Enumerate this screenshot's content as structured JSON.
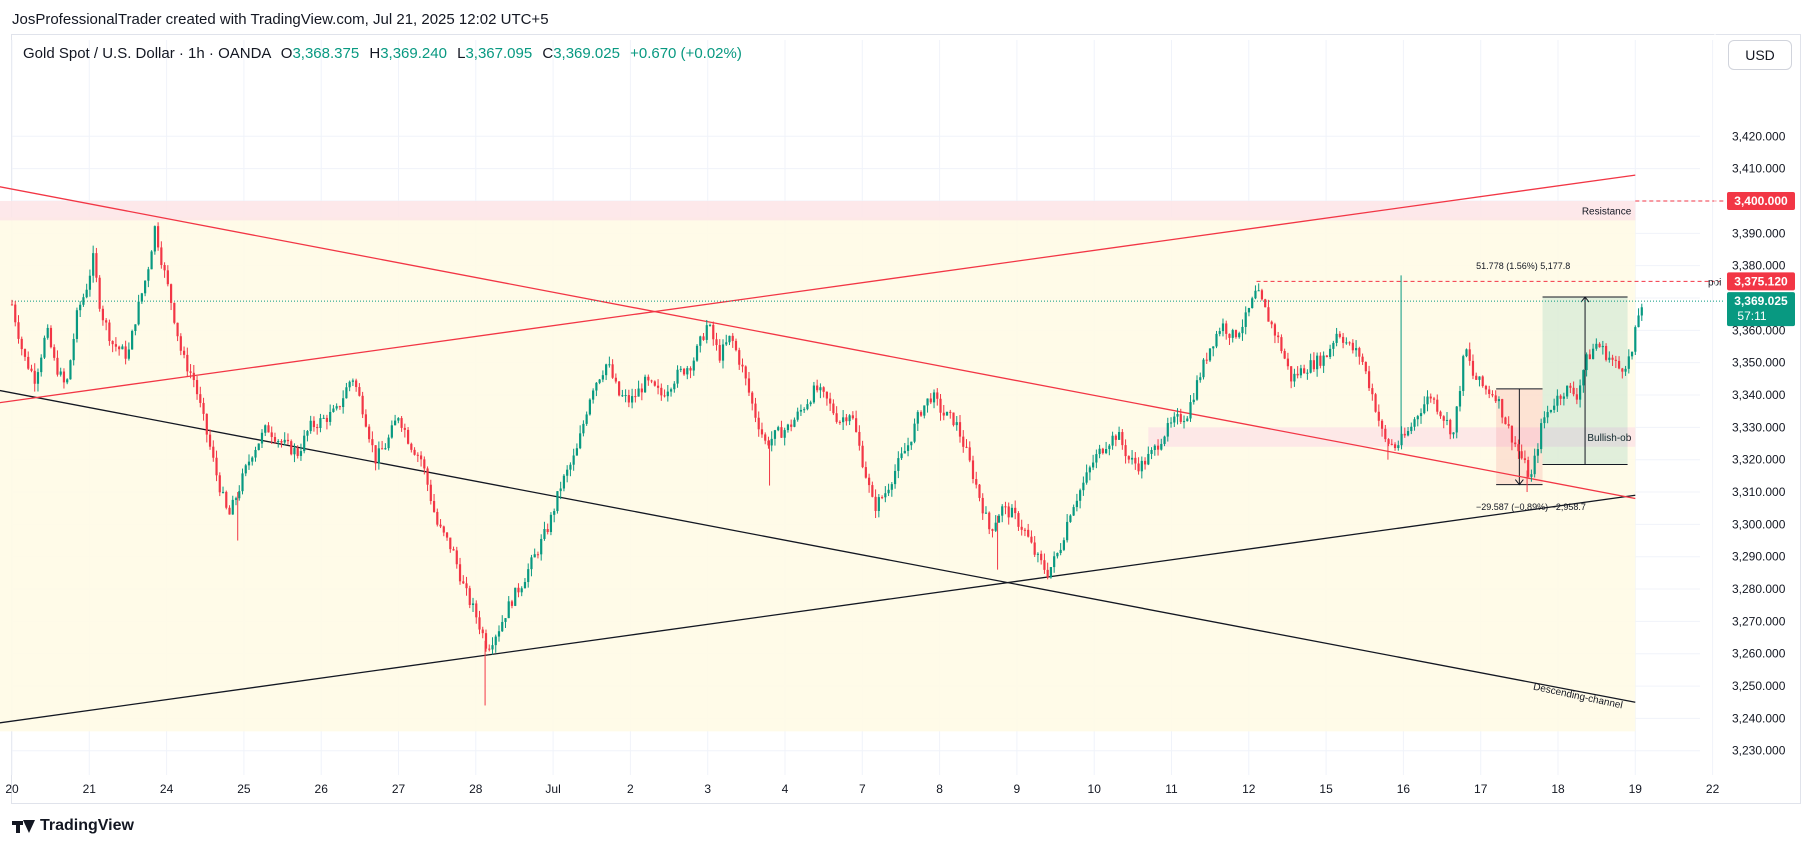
{
  "header": {
    "credit": "JosProfessionalTrader created with TradingView.com, Jul 21, 2025 12:02 UTC+5"
  },
  "legend": {
    "symbol": "Gold Spot / U.S. Dollar · 1h · OANDA",
    "open_label": "O",
    "open": "3,368.375",
    "high_label": "H",
    "high": "3,369.240",
    "low_label": "L",
    "low": "3,367.095",
    "close_label": "C",
    "close": "3,369.025",
    "change": "+0.670 (+0.02%)"
  },
  "currency_button": "USD",
  "footer": {
    "brand": "TradingView"
  },
  "colors": {
    "up": "#089981",
    "down": "#f23645",
    "trend_red": "#f23645",
    "trend_black": "#131722",
    "zone_fill": "#fffbe6",
    "resistance_fill": "#fde4e6"
  },
  "chart_data": {
    "type": "candlestick",
    "y_axis_ticks": [
      "3,230.000",
      "3,240.000",
      "3,250.000",
      "3,260.000",
      "3,270.000",
      "3,280.000",
      "3,290.000",
      "3,300.000",
      "3,310.000",
      "3,320.000",
      "3,330.000",
      "3,340.000",
      "3,350.000",
      "3,360.000",
      "3,370.000",
      "3,380.000",
      "3,390.000",
      "3,400.000",
      "3,410.000",
      "3,420.000"
    ],
    "y_tick_values": [
      3230,
      3240,
      3250,
      3260,
      3270,
      3280,
      3290,
      3300,
      3310,
      3320,
      3330,
      3340,
      3350,
      3360,
      3370,
      3380,
      3390,
      3400,
      3410,
      3420
    ],
    "ylim": [
      3222,
      3440
    ],
    "x_axis_ticks": [
      "20",
      "21",
      "24",
      "25",
      "26",
      "27",
      "28",
      "Jul",
      "2",
      "3",
      "4",
      "7",
      "8",
      "9",
      "10",
      "11",
      "12",
      "15",
      "16",
      "17",
      "18",
      "19",
      "22"
    ],
    "x_tick_index": [
      0,
      1,
      2,
      3,
      4,
      5,
      6,
      7,
      8,
      9,
      10,
      11,
      12,
      13,
      14,
      15,
      16,
      17,
      18,
      19,
      20,
      21,
      22
    ],
    "price_labels": [
      {
        "text": "3,400.000",
        "value": 3400,
        "color": "#f23645"
      },
      {
        "text": "3,375.120",
        "value": 3375.12,
        "color": "#f23645"
      },
      {
        "text": "3,369.025",
        "value": 3369.025,
        "color": "#089981",
        "sub": "57:11"
      }
    ],
    "zones": [
      {
        "label": "Resistance",
        "y1": 3394,
        "y2": 3400,
        "x1": -0.95,
        "x2": 21.0
      },
      {
        "label": "Bullish-ob",
        "y1": 3324,
        "y2": 3330,
        "x1": 14.7,
        "x2": 21.0
      }
    ],
    "trendlines": [
      {
        "name": "Descending-channel",
        "color": "#131722",
        "points": [
          [
            -0.95,
            3345
          ],
          [
            21.0,
            3245
          ]
        ]
      },
      {
        "name": "ascending-support",
        "color": "#131722",
        "points": [
          [
            -0.95,
            3236
          ],
          [
            21.0,
            3309
          ]
        ]
      },
      {
        "name": "descending-resistance",
        "color": "#f23645",
        "points": [
          [
            -0.95,
            3408
          ],
          [
            21.0,
            3308
          ]
        ]
      },
      {
        "name": "ascending-resistance",
        "color": "#f23645",
        "points": [
          [
            -0.95,
            3335
          ],
          [
            21.0,
            3408
          ]
        ]
      }
    ],
    "annotations": [
      {
        "text": "Descending-channel",
        "day": 20.25,
        "value": 3246
      },
      {
        "text": "poi",
        "day": 21.2,
        "value": 3375.12
      },
      {
        "text": "51.778 (1.56%) 5,177.8",
        "day": 19.55,
        "value": 3379
      },
      {
        "text": "−29.587 (−0.89%) −2,958.7",
        "day": 19.65,
        "value": 3304.5
      }
    ],
    "measure_up": {
      "x1": 19.8,
      "x2": 20.9,
      "y1": 3318.5,
      "y2": 3370.3
    },
    "measure_down": {
      "x1": 19.2,
      "x2": 19.8,
      "y1": 3341.9,
      "y2": 3312.3
    },
    "poi_line": {
      "value": 3375.12,
      "x1": 16.1
    },
    "path": [
      [
        0,
        3368
      ],
      [
        0.15,
        3352
      ],
      [
        0.3,
        3345
      ],
      [
        0.45,
        3360
      ],
      [
        0.55,
        3350
      ],
      [
        0.7,
        3342
      ],
      [
        0.85,
        3366
      ],
      [
        0.95,
        3372
      ],
      [
        1.05,
        3382
      ],
      [
        1.15,
        3366
      ],
      [
        1.3,
        3356
      ],
      [
        1.5,
        3352
      ],
      [
        1.6,
        3364
      ],
      [
        1.75,
        3378
      ],
      [
        1.85,
        3392
      ],
      [
        1.95,
        3380
      ],
      [
        2.05,
        3370
      ],
      [
        2.2,
        3352
      ],
      [
        2.35,
        3345
      ],
      [
        2.5,
        3330
      ],
      [
        2.65,
        3315
      ],
      [
        2.8,
        3302
      ],
      [
        2.95,
        3312
      ],
      [
        3.1,
        3322
      ],
      [
        3.3,
        3330
      ],
      [
        3.5,
        3325
      ],
      [
        3.7,
        3322
      ],
      [
        3.85,
        3330
      ],
      [
        4.0,
        3332
      ],
      [
        4.2,
        3335
      ],
      [
        4.4,
        3346
      ],
      [
        4.55,
        3335
      ],
      [
        4.7,
        3320
      ],
      [
        4.85,
        3325
      ],
      [
        5.0,
        3334
      ],
      [
        5.15,
        3325
      ],
      [
        5.3,
        3320
      ],
      [
        5.5,
        3300
      ],
      [
        5.7,
        3292
      ],
      [
        5.85,
        3280
      ],
      [
        6.0,
        3272
      ],
      [
        6.15,
        3262
      ],
      [
        6.3,
        3268
      ],
      [
        6.45,
        3276
      ],
      [
        6.6,
        3282
      ],
      [
        6.8,
        3292
      ],
      [
        6.95,
        3300
      ],
      [
        7.1,
        3312
      ],
      [
        7.3,
        3322
      ],
      [
        7.5,
        3342
      ],
      [
        7.7,
        3350
      ],
      [
        7.85,
        3340
      ],
      [
        8.0,
        3338
      ],
      [
        8.2,
        3344
      ],
      [
        8.4,
        3340
      ],
      [
        8.6,
        3346
      ],
      [
        8.8,
        3350
      ],
      [
        9.0,
        3362
      ],
      [
        9.15,
        3352
      ],
      [
        9.3,
        3358
      ],
      [
        9.45,
        3348
      ],
      [
        9.6,
        3335
      ],
      [
        9.75,
        3325
      ],
      [
        9.9,
        3328
      ],
      [
        10.05,
        3330
      ],
      [
        10.2,
        3335
      ],
      [
        10.4,
        3342
      ],
      [
        10.55,
        3338
      ],
      [
        10.7,
        3332
      ],
      [
        10.85,
        3335
      ],
      [
        11.0,
        3320
      ],
      [
        11.15,
        3305
      ],
      [
        11.3,
        3310
      ],
      [
        11.45,
        3318
      ],
      [
        11.6,
        3325
      ],
      [
        11.75,
        3335
      ],
      [
        11.9,
        3340
      ],
      [
        12.05,
        3334
      ],
      [
        12.2,
        3332
      ],
      [
        12.35,
        3322
      ],
      [
        12.5,
        3310
      ],
      [
        12.65,
        3298
      ],
      [
        12.8,
        3305
      ],
      [
        12.95,
        3303
      ],
      [
        13.1,
        3298
      ],
      [
        13.25,
        3290
      ],
      [
        13.4,
        3285
      ],
      [
        13.55,
        3292
      ],
      [
        13.7,
        3305
      ],
      [
        13.85,
        3312
      ],
      [
        14.0,
        3320
      ],
      [
        14.15,
        3325
      ],
      [
        14.3,
        3328
      ],
      [
        14.45,
        3320
      ],
      [
        14.6,
        3318
      ],
      [
        14.75,
        3322
      ],
      [
        14.9,
        3328
      ],
      [
        15.05,
        3332
      ],
      [
        15.2,
        3334
      ],
      [
        15.35,
        3345
      ],
      [
        15.5,
        3355
      ],
      [
        15.65,
        3362
      ],
      [
        15.8,
        3358
      ],
      [
        15.95,
        3363
      ],
      [
        16.1,
        3372
      ],
      [
        16.25,
        3364
      ],
      [
        16.4,
        3356
      ],
      [
        16.55,
        3345
      ],
      [
        16.7,
        3348
      ],
      [
        16.85,
        3350
      ],
      [
        17.0,
        3352
      ],
      [
        17.15,
        3360
      ],
      [
        17.3,
        3355
      ],
      [
        17.45,
        3352
      ],
      [
        17.6,
        3340
      ],
      [
        17.75,
        3326
      ],
      [
        17.9,
        3324
      ],
      [
        18.05,
        3328
      ],
      [
        18.2,
        3335
      ],
      [
        18.35,
        3340
      ],
      [
        18.5,
        3334
      ],
      [
        18.65,
        3328
      ],
      [
        18.8,
        3355
      ],
      [
        18.9,
        3346
      ],
      [
        19.05,
        3342
      ],
      [
        19.2,
        3340
      ],
      [
        19.35,
        3330
      ],
      [
        19.5,
        3322
      ],
      [
        19.65,
        3314
      ],
      [
        19.8,
        3332
      ],
      [
        19.95,
        3338
      ],
      [
        20.1,
        3342
      ],
      [
        20.25,
        3340
      ],
      [
        20.35,
        3350
      ],
      [
        20.5,
        3356
      ],
      [
        20.65,
        3352
      ],
      [
        20.8,
        3348
      ],
      [
        20.95,
        3352
      ],
      [
        21.05,
        3366
      ],
      [
        21.1,
        3369
      ]
    ],
    "spikes": [
      {
        "day": 6.12,
        "low": 3244
      },
      {
        "day": 17.97,
        "high": 3377
      },
      {
        "day": 17.8,
        "low": 3320
      },
      {
        "day": 9.8,
        "low": 3312
      },
      {
        "day": 2.92,
        "low": 3295
      },
      {
        "day": 12.75,
        "low": 3286
      },
      {
        "day": 19.6,
        "low": 3310
      }
    ]
  }
}
